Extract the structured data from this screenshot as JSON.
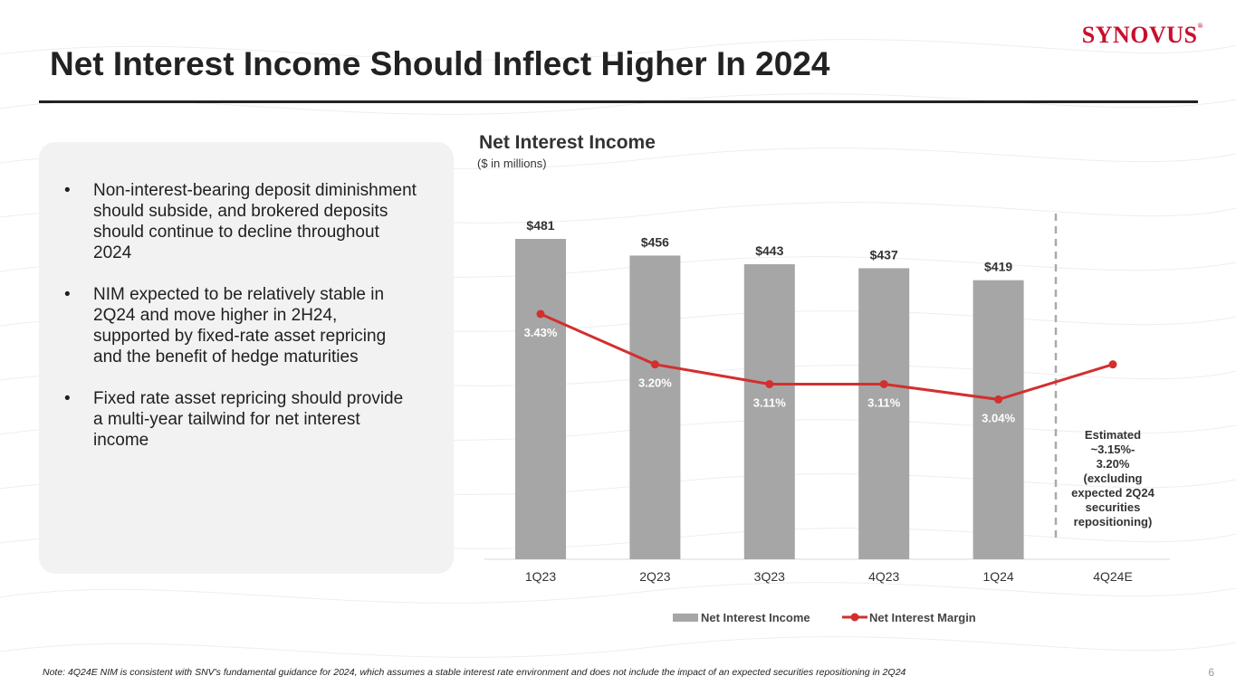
{
  "brand": {
    "logo_text": "SYNOVUS",
    "accent": "#c8102e"
  },
  "slide": {
    "title": "Net Interest Income Should Inflect Higher In 2024",
    "page_number": "6",
    "note": "Note: 4Q24E NIM is consistent with SNV's fundamental guidance for 2024, which assumes a stable interest rate environment and does not include the impact of an expected securities repositioning in 2Q24"
  },
  "bullets": [
    "Non-interest-bearing deposit diminishment should subside, and brokered deposits should continue to decline throughout 2024",
    "NIM expected to be relatively stable in 2Q24 and move higher in 2H24, supported by fixed-rate asset repricing and the benefit of hedge maturities",
    "Fixed rate asset repricing should provide a multi-year tailwind for net interest income"
  ],
  "bullet_symbol": "•",
  "chart_data": {
    "type": "bar",
    "title": "Net Interest Income",
    "subtitle": "($ in millions)",
    "categories": [
      "1Q23",
      "2Q23",
      "3Q23",
      "4Q23",
      "1Q24",
      "4Q24E"
    ],
    "series": [
      {
        "name": "Net Interest Income",
        "type": "bar",
        "color": "#a6a6a6",
        "values": [
          481,
          456,
          443,
          437,
          419,
          null
        ],
        "labels": [
          "$481",
          "$456",
          "$443",
          "$437",
          "$419",
          ""
        ]
      },
      {
        "name": "Net Interest Margin",
        "type": "line",
        "color": "#d32f2f",
        "values": [
          3.43,
          3.2,
          3.11,
          3.11,
          3.04,
          3.2
        ],
        "labels": [
          "3.43%",
          "3.20%",
          "3.11%",
          "3.11%",
          "3.04%",
          ""
        ]
      }
    ],
    "bar_ylim": [
      0,
      481
    ],
    "margin_ylim": [
      2.6,
      3.5
    ],
    "estimate_annotation": [
      "Estimated",
      "~3.15%-",
      "3.20%",
      "(excluding",
      "expected 2Q24",
      "securities",
      "repositioning)"
    ],
    "legend_position": "bottom"
  }
}
